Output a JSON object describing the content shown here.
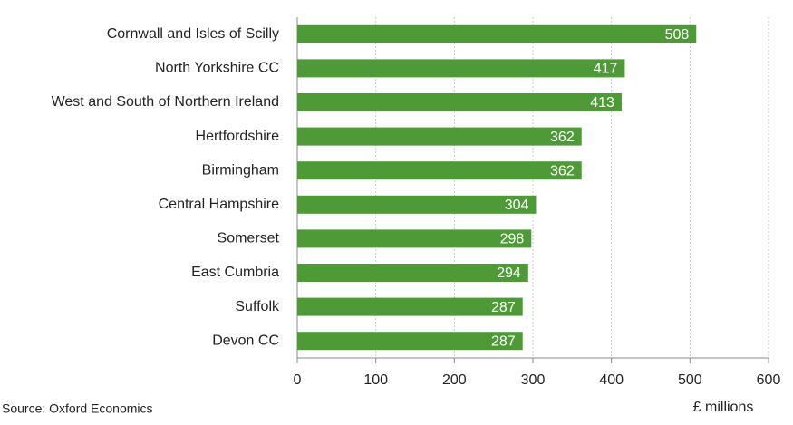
{
  "chart_data": {
    "type": "hbar",
    "categories": [
      "Cornwall and Isles of Scilly",
      "North Yorkshire CC",
      "West and South of Northern Ireland",
      "Hertfordshire",
      "Birmingham",
      "Central Hampshire",
      "Somerset",
      "East Cumbria",
      "Suffolk",
      "Devon CC"
    ],
    "values": [
      508,
      417,
      413,
      362,
      362,
      304,
      298,
      294,
      287,
      287
    ],
    "color": "#4e9a36",
    "xlim": [
      0,
      600
    ],
    "xticks": [
      0,
      100,
      200,
      300,
      400,
      500,
      600
    ],
    "grid": true,
    "xlabel": "£ millions",
    "source": "Source: Oxford Economics"
  }
}
